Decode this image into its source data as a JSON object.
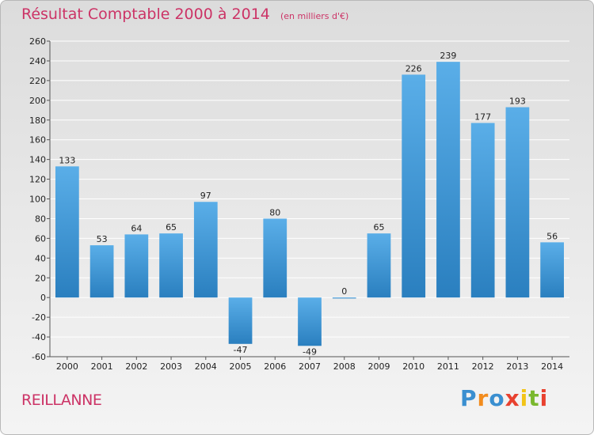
{
  "header": {
    "title": "Résultat Comptable 2000 à 2014",
    "subtitle": "(en milliers d'€)"
  },
  "footer": {
    "commune": "REILLANNE",
    "brand": [
      "P",
      "r",
      "o",
      "x",
      "i",
      "t",
      "i"
    ]
  },
  "colors": {
    "accent": "#cc3366",
    "bar_light": "#5aaee8",
    "bar_dark": "#2a7fbf",
    "grid": "#ffffff",
    "brand_letters": [
      "#3a8fd0",
      "#f28c1e",
      "#3a8fd0",
      "#e8412f",
      "#f2c418",
      "#7ab82e",
      "#e8412f"
    ]
  },
  "chart_data": {
    "type": "bar",
    "title": "Résultat Comptable 2000 à 2014",
    "subtitle": "(en milliers d'€)",
    "xlabel": "",
    "ylabel": "",
    "categories": [
      "2000",
      "2001",
      "2002",
      "2003",
      "2004",
      "2005",
      "2006",
      "2007",
      "2008",
      "2009",
      "2010",
      "2011",
      "2012",
      "2013",
      "2014"
    ],
    "values": [
      133,
      53,
      64,
      65,
      97,
      -47,
      80,
      -49,
      0,
      65,
      226,
      239,
      177,
      193,
      56
    ],
    "ylim": [
      -60,
      260
    ],
    "yticks": [
      -60,
      -40,
      -20,
      0,
      20,
      40,
      60,
      80,
      100,
      120,
      140,
      160,
      180,
      200,
      220,
      240,
      260
    ],
    "grid": true
  }
}
